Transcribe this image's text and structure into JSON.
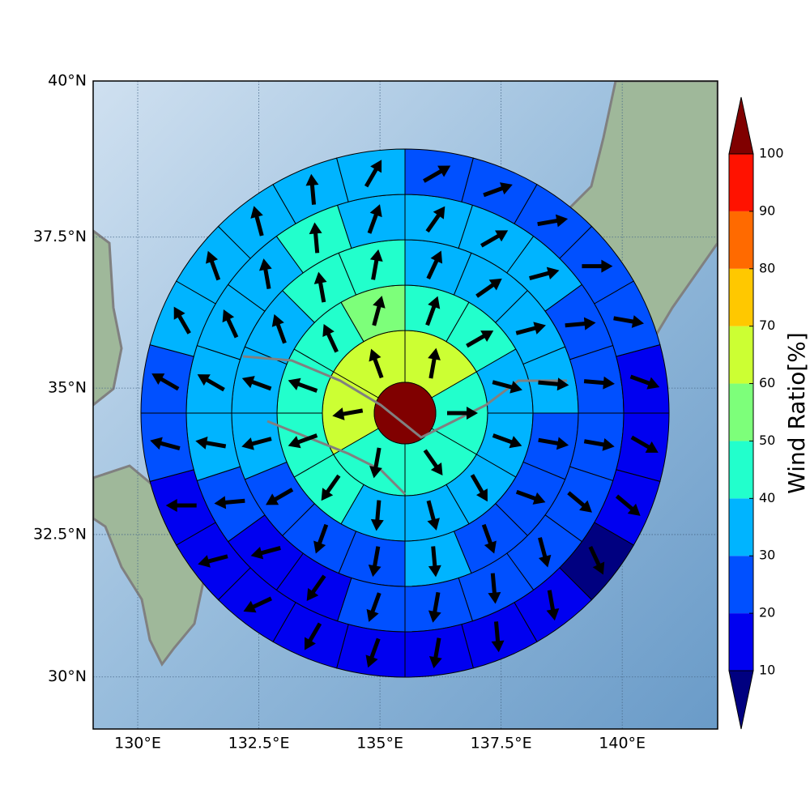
{
  "chart_data": {
    "type": "polar-grid-map",
    "projection": "mercator",
    "xlim": [
      129.08,
      141.97
    ],
    "ylim": [
      29.07,
      40.0
    ],
    "xticks": [
      {
        "value": 130,
        "label": "130°E"
      },
      {
        "value": 132.5,
        "label": "132.5°E"
      },
      {
        "value": 135,
        "label": "135°E"
      },
      {
        "value": 137.5,
        "label": "137.5°E"
      },
      {
        "value": 140,
        "label": "140°E"
      }
    ],
    "yticks": [
      {
        "value": 30,
        "label": "30°N"
      },
      {
        "value": 32.5,
        "label": "32.5°N"
      },
      {
        "value": 35,
        "label": "35°N"
      },
      {
        "value": 37.5,
        "label": "37.5°N"
      },
      {
        "value": 40,
        "label": "40°N"
      }
    ],
    "grid": true,
    "center_value": 100,
    "rings": [
      {
        "values": [
          65,
          45,
          45,
          45,
          65,
          65
        ],
        "directions": [
          10,
          90,
          145,
          190,
          260,
          340
        ]
      },
      {
        "values": [
          45,
          45,
          35,
          35,
          35,
          35,
          35,
          45,
          45,
          45,
          45,
          55
        ],
        "directions": [
          20,
          60,
          105,
          110,
          150,
          165,
          185,
          215,
          250,
          290,
          335,
          15
        ]
      },
      {
        "values": [
          35,
          35,
          35,
          35,
          25,
          25,
          25,
          35,
          25,
          25,
          25,
          35,
          35,
          35,
          45,
          45
        ],
        "directions": [
          25,
          55,
          75,
          95,
          100,
          110,
          160,
          175,
          190,
          200,
          240,
          255,
          290,
          340,
          350,
          10
        ]
      },
      {
        "values": [
          35,
          35,
          35,
          25,
          25,
          25,
          25,
          25,
          25,
          25,
          25,
          15,
          15,
          25,
          35,
          35,
          35,
          35,
          45,
          35
        ],
        "directions": [
          35,
          60,
          75,
          85,
          95,
          100,
          130,
          165,
          175,
          190,
          200,
          215,
          255,
          265,
          280,
          300,
          335,
          350,
          355,
          20
        ]
      },
      {
        "values": [
          25,
          25,
          25,
          25,
          25,
          15,
          15,
          15,
          5,
          15,
          15,
          15,
          15,
          15,
          15,
          15,
          15,
          25,
          25,
          35,
          35,
          35,
          35,
          35
        ],
        "directions": [
          60,
          70,
          80,
          90,
          100,
          110,
          120,
          130,
          155,
          170,
          175,
          190,
          200,
          210,
          245,
          255,
          270,
          285,
          300,
          330,
          340,
          345,
          355,
          30
        ]
      }
    ],
    "colorbar": {
      "label": "Wind Ratio[%]",
      "levels": [
        10,
        20,
        30,
        40,
        50,
        60,
        70,
        80,
        90,
        100
      ],
      "colors": [
        "#0000f0",
        "#0050ff",
        "#00b4ff",
        "#22ffcc",
        "#7dff7a",
        "#ccff33",
        "#ffc800",
        "#ff6a00",
        "#ff1200"
      ],
      "under_color": "#000080",
      "over_color": "#800000"
    }
  }
}
